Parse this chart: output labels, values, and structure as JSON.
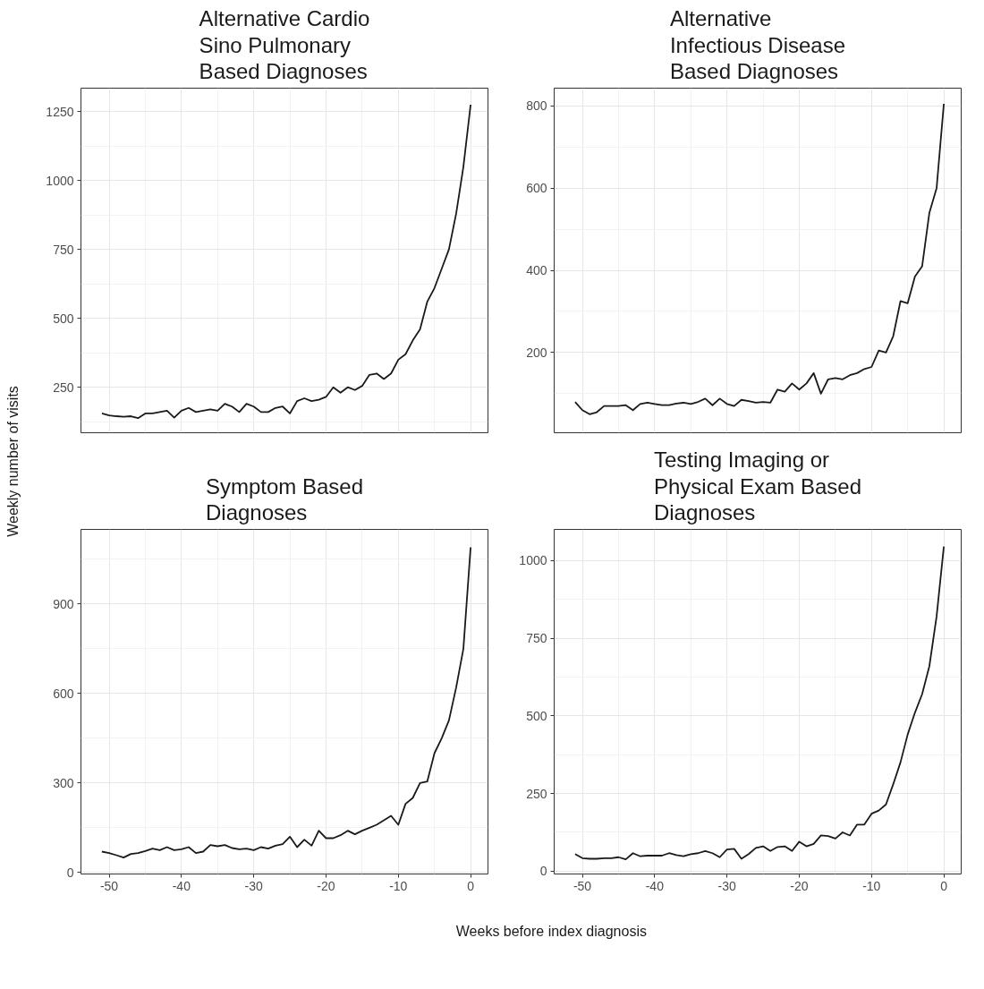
{
  "chart_data": [
    {
      "type": "line",
      "title": "Alternative Cardio\nSino Pulmonary\nBased Diagnoses",
      "ylabel": "Weekly number of visits",
      "color": "#1a1a1a",
      "grid": true,
      "tick_labels": "y",
      "x": [
        -51,
        -50,
        -49,
        -48,
        -47,
        -46,
        -45,
        -44,
        -43,
        -42,
        -41,
        -40,
        -39,
        -38,
        -37,
        -36,
        -35,
        -34,
        -33,
        -32,
        -31,
        -30,
        -29,
        -28,
        -27,
        -26,
        -25,
        -24,
        -23,
        -22,
        -21,
        -20,
        -19,
        -18,
        -17,
        -16,
        -15,
        -14,
        -13,
        -12,
        -11,
        -10,
        -9,
        -8,
        -7,
        -6,
        -5,
        -4,
        -3,
        -2,
        -1,
        0
      ],
      "values": [
        155,
        148,
        145,
        143,
        145,
        138,
        155,
        155,
        160,
        165,
        140,
        165,
        175,
        160,
        165,
        170,
        165,
        190,
        180,
        160,
        190,
        180,
        160,
        160,
        175,
        180,
        155,
        200,
        210,
        200,
        205,
        215,
        250,
        230,
        250,
        240,
        255,
        295,
        300,
        280,
        300,
        350,
        370,
        420,
        460,
        560,
        610,
        680,
        750,
        880,
        1050,
        1275
      ],
      "xlim": [
        -53.9,
        2.4
      ],
      "ylim": [
        85,
        1335
      ],
      "xticks": [
        -50,
        -40,
        -30,
        -20,
        -10,
        0
      ],
      "yticks": [
        250,
        500,
        750,
        1000,
        1250
      ]
    },
    {
      "type": "line",
      "title": "Alternative\nInfectious Disease\nBased Diagnoses",
      "color": "#1a1a1a",
      "grid": true,
      "tick_labels": "y",
      "x": [
        -51,
        -50,
        -49,
        -48,
        -47,
        -46,
        -45,
        -44,
        -43,
        -42,
        -41,
        -40,
        -39,
        -38,
        -37,
        -36,
        -35,
        -34,
        -33,
        -32,
        -31,
        -30,
        -29,
        -28,
        -27,
        -26,
        -25,
        -24,
        -23,
        -22,
        -21,
        -20,
        -19,
        -18,
        -17,
        -16,
        -15,
        -14,
        -13,
        -12,
        -11,
        -10,
        -9,
        -8,
        -7,
        -6,
        -5,
        -4,
        -3,
        -2,
        -1,
        0
      ],
      "values": [
        80,
        60,
        50,
        55,
        70,
        70,
        70,
        72,
        60,
        75,
        78,
        75,
        72,
        72,
        76,
        78,
        75,
        80,
        88,
        72,
        88,
        75,
        70,
        85,
        82,
        78,
        80,
        78,
        110,
        105,
        125,
        110,
        125,
        150,
        100,
        135,
        138,
        135,
        145,
        150,
        160,
        165,
        205,
        200,
        240,
        325,
        320,
        385,
        410,
        540,
        600,
        805
      ],
      "xlim": [
        -53.9,
        2.4
      ],
      "ylim": [
        5,
        843
      ],
      "xticks": [
        -50,
        -40,
        -30,
        -20,
        -10,
        0
      ],
      "yticks": [
        200,
        400,
        600,
        800
      ]
    },
    {
      "type": "line",
      "title": "Symptom Based\nDiagnoses",
      "xlabel": "Weeks before index diagnosis",
      "color": "#1a1a1a",
      "grid": true,
      "x": [
        -51,
        -50,
        -49,
        -48,
        -47,
        -46,
        -45,
        -44,
        -43,
        -42,
        -41,
        -40,
        -39,
        -38,
        -37,
        -36,
        -35,
        -34,
        -33,
        -32,
        -31,
        -30,
        -29,
        -28,
        -27,
        -26,
        -25,
        -24,
        -23,
        -22,
        -21,
        -20,
        -19,
        -18,
        -17,
        -16,
        -15,
        -14,
        -13,
        -12,
        -11,
        -10,
        -9,
        -8,
        -7,
        -6,
        -5,
        -4,
        -3,
        -2,
        -1,
        0
      ],
      "values": [
        70,
        65,
        58,
        50,
        62,
        65,
        72,
        80,
        75,
        85,
        75,
        78,
        85,
        65,
        70,
        92,
        88,
        92,
        82,
        78,
        80,
        75,
        85,
        80,
        90,
        95,
        120,
        85,
        110,
        90,
        140,
        115,
        115,
        125,
        140,
        128,
        140,
        150,
        160,
        175,
        190,
        160,
        230,
        250,
        300,
        305,
        400,
        450,
        510,
        620,
        750,
        1090
      ],
      "xlim": [
        -53.9,
        2.4
      ],
      "ylim": [
        -5,
        1150
      ],
      "xticks": [
        -50,
        -40,
        -30,
        -20,
        -10,
        0
      ],
      "yticks": [
        0,
        300,
        600,
        900
      ]
    },
    {
      "type": "line",
      "title": "Testing Imaging or\nPhysical Exam Based\nDiagnoses",
      "color": "#1a1a1a",
      "grid": true,
      "x": [
        -51,
        -50,
        -49,
        -48,
        -47,
        -46,
        -45,
        -44,
        -43,
        -42,
        -41,
        -40,
        -39,
        -38,
        -37,
        -36,
        -35,
        -34,
        -33,
        -32,
        -31,
        -30,
        -29,
        -28,
        -27,
        -26,
        -25,
        -24,
        -23,
        -22,
        -21,
        -20,
        -19,
        -18,
        -17,
        -16,
        -15,
        -14,
        -13,
        -12,
        -11,
        -10,
        -9,
        -8,
        -7,
        -6,
        -5,
        -4,
        -3,
        -2,
        -1,
        0
      ],
      "values": [
        55,
        42,
        40,
        40,
        42,
        42,
        45,
        38,
        58,
        48,
        50,
        50,
        50,
        58,
        52,
        48,
        55,
        58,
        65,
        58,
        45,
        70,
        72,
        40,
        55,
        75,
        80,
        65,
        78,
        80,
        65,
        95,
        80,
        88,
        115,
        113,
        105,
        125,
        115,
        150,
        150,
        185,
        195,
        215,
        280,
        350,
        440,
        510,
        570,
        660,
        820,
        1045
      ],
      "xlim": [
        -53.9,
        2.4
      ],
      "ylim": [
        -9,
        1100
      ],
      "xticks": [
        -50,
        -40,
        -30,
        -20,
        -10,
        0
      ],
      "yticks": [
        0,
        250,
        500,
        750,
        1000
      ]
    }
  ]
}
